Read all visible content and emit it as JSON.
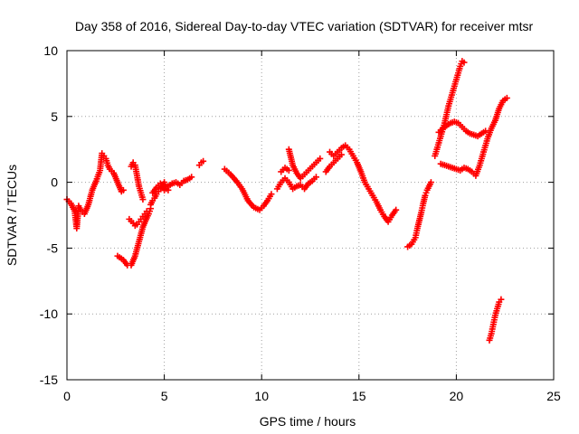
{
  "chart_data": {
    "type": "scatter",
    "title": "Day 358 of 2016, Sidereal Day-to-day VTEC variation (SDTVAR) for receiver mtsr",
    "xlabel": "GPS time / hours",
    "ylabel": "SDTVAR / TECUs",
    "xlim": [
      0,
      25
    ],
    "ylim": [
      -15,
      10
    ],
    "xticks": [
      0,
      5,
      10,
      15,
      20,
      25
    ],
    "yticks": [
      -15,
      -10,
      -5,
      0,
      5,
      10
    ],
    "xtick_labels": [
      "0",
      "5",
      "10",
      "15",
      "20",
      "25"
    ],
    "ytick_labels": [
      "-15",
      "-10",
      "-5",
      "0",
      "5",
      "10"
    ],
    "grid": true,
    "marker": "+",
    "color": "#ff0000",
    "series": [
      {
        "name": "seg1",
        "x": [
          0.0,
          0.2,
          0.4,
          0.5,
          0.6,
          0.7,
          0.9,
          1.1,
          1.3,
          1.5,
          1.7,
          1.8,
          1.9,
          2.0,
          2.1,
          2.2,
          2.4,
          2.6,
          2.8,
          2.9
        ],
        "y": [
          -1.3,
          -1.6,
          -2.2,
          -3.5,
          -1.8,
          -2.1,
          -2.4,
          -1.7,
          -0.6,
          0.1,
          0.9,
          2.2,
          2.0,
          1.8,
          1.3,
          1.0,
          0.7,
          0.0,
          -0.7,
          -0.6
        ]
      },
      {
        "name": "seg2",
        "x": [
          2.6,
          2.7,
          2.9,
          3.1,
          3.3,
          3.5,
          3.7,
          3.9,
          4.1,
          4.2,
          4.3
        ],
        "y": [
          -5.6,
          -5.7,
          -5.9,
          -6.3,
          -6.3,
          -5.6,
          -4.5,
          -3.4,
          -2.7,
          -2.4,
          -2.0
        ]
      },
      {
        "name": "seg3",
        "x": [
          3.2,
          3.4,
          3.5,
          3.6,
          3.7,
          3.8,
          3.9,
          4.0,
          4.1
        ],
        "y": [
          -2.8,
          -3.1,
          -3.3,
          -3.2,
          -3.0,
          -2.8,
          -2.6,
          -2.4,
          -2.2
        ]
      },
      {
        "name": "seg4",
        "x": [
          3.3,
          3.4,
          3.5,
          3.6,
          3.7,
          3.8,
          3.9
        ],
        "y": [
          1.2,
          1.5,
          1.3,
          0.5,
          -0.3,
          -0.8,
          -1.3
        ]
      },
      {
        "name": "seg5",
        "x": [
          4.3,
          4.4,
          4.5,
          4.6,
          4.7,
          4.8,
          4.9,
          5.0,
          5.1,
          5.2
        ],
        "y": [
          -1.7,
          -1.4,
          -1.2,
          -0.9,
          -0.7,
          -0.5,
          -0.3,
          0.0,
          -0.5,
          -0.6
        ]
      },
      {
        "name": "seg6",
        "x": [
          4.4,
          4.6,
          4.8,
          5.0,
          5.2,
          5.4,
          5.6,
          5.8,
          6.0,
          6.2,
          6.4
        ],
        "y": [
          -0.8,
          -0.4,
          -0.1,
          -0.6,
          -0.3,
          -0.1,
          0.0,
          -0.2,
          0.1,
          0.2,
          0.4
        ]
      },
      {
        "name": "seg7",
        "x": [
          6.8,
          6.9,
          7.0
        ],
        "y": [
          1.3,
          1.5,
          1.6
        ]
      },
      {
        "name": "seg8",
        "x": [
          8.1,
          8.4,
          8.7,
          9.0,
          9.3,
          9.6,
          9.9,
          10.1,
          10.3,
          10.5
        ],
        "y": [
          1.0,
          0.6,
          0.1,
          -0.5,
          -1.4,
          -1.9,
          -2.1,
          -1.8,
          -1.4,
          -0.9
        ]
      },
      {
        "name": "seg9",
        "x": [
          10.8,
          11.0,
          11.2,
          11.4,
          11.6,
          11.8,
          12.0,
          12.2,
          12.4,
          12.6,
          12.8
        ],
        "y": [
          -0.5,
          0.0,
          0.3,
          0.0,
          -0.5,
          -0.3,
          -0.2,
          -0.5,
          -0.1,
          0.1,
          0.4
        ]
      },
      {
        "name": "seg10",
        "x": [
          11.4,
          11.6,
          11.8,
          12.0,
          12.2,
          12.4,
          12.6,
          12.8,
          13.0
        ],
        "y": [
          2.5,
          1.3,
          0.7,
          0.3,
          0.6,
          0.9,
          1.2,
          1.5,
          1.8
        ]
      },
      {
        "name": "seg11",
        "x": [
          11.0,
          11.2,
          11.4
        ],
        "y": [
          0.8,
          1.1,
          0.9
        ]
      },
      {
        "name": "seg12",
        "x": [
          13.5,
          13.7,
          13.9,
          14.1,
          14.3,
          14.5,
          14.7,
          14.9,
          15.1,
          15.3,
          15.5,
          15.7,
          15.9,
          16.1,
          16.3,
          16.5,
          16.7,
          16.9
        ],
        "y": [
          2.3,
          2.0,
          2.3,
          2.6,
          2.8,
          2.5,
          2.0,
          1.5,
          0.8,
          0.0,
          -0.5,
          -1.0,
          -1.5,
          -2.1,
          -2.6,
          -3.0,
          -2.5,
          -2.1
        ]
      },
      {
        "name": "seg13",
        "x": [
          13.3,
          13.5,
          13.7,
          13.9,
          14.1
        ],
        "y": [
          0.8,
          1.2,
          1.5,
          1.8,
          2.1
        ]
      },
      {
        "name": "seg14",
        "x": [
          17.5,
          17.7,
          17.9,
          18.0,
          18.1,
          18.2,
          18.3,
          18.4,
          18.5,
          18.6,
          18.7
        ],
        "y": [
          -4.9,
          -4.7,
          -4.2,
          -3.5,
          -2.9,
          -2.3,
          -1.6,
          -1.0,
          -0.6,
          -0.3,
          0.0
        ]
      },
      {
        "name": "seg15",
        "x": [
          18.9,
          19.0,
          19.2,
          19.4,
          19.6,
          19.8,
          20.0,
          20.2,
          20.3,
          20.4
        ],
        "y": [
          2.0,
          2.5,
          3.5,
          4.5,
          5.8,
          6.8,
          7.8,
          8.8,
          9.2,
          9.1
        ]
      },
      {
        "name": "seg16",
        "x": [
          19.1,
          19.3,
          19.5,
          19.7,
          19.9,
          20.1,
          20.3,
          20.5,
          20.7,
          20.9,
          21.1,
          21.3,
          21.5
        ],
        "y": [
          3.8,
          4.1,
          4.3,
          4.5,
          4.6,
          4.5,
          4.2,
          3.9,
          3.7,
          3.6,
          3.5,
          3.7,
          3.9
        ]
      },
      {
        "name": "seg17",
        "x": [
          19.2,
          19.4,
          19.6,
          19.8,
          20.0,
          20.2,
          20.4,
          20.6,
          20.8,
          21.0,
          21.2,
          21.4,
          21.6,
          21.8,
          22.0,
          22.2,
          22.4,
          22.6
        ],
        "y": [
          1.4,
          1.3,
          1.2,
          1.1,
          1.0,
          0.9,
          1.1,
          1.0,
          0.8,
          0.5,
          1.3,
          2.3,
          3.3,
          4.1,
          4.7,
          5.6,
          6.2,
          6.4
        ]
      },
      {
        "name": "seg18",
        "x": [
          21.7,
          21.8,
          21.9,
          22.0,
          22.1,
          22.2,
          22.3
        ],
        "y": [
          -12.0,
          -11.5,
          -10.8,
          -10.1,
          -9.6,
          -9.1,
          -8.9
        ]
      }
    ]
  }
}
